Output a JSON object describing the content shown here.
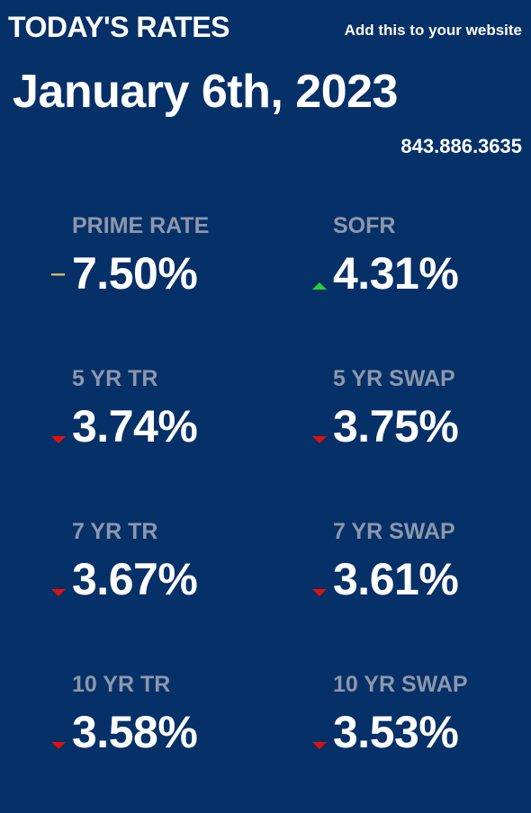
{
  "header": {
    "title": "TODAY'S RATES",
    "add_link": "Add this to your website"
  },
  "date": "January 6th, 2023",
  "phone": "843.886.3635",
  "colors": {
    "background": "#063068",
    "label": "#8d97ab",
    "value": "#ffffff",
    "up": "#2ecc2e",
    "down": "#e01010",
    "unchanged": "#c8b46a"
  },
  "rates": [
    {
      "label": "PRIME RATE",
      "value": "7.50%",
      "trend": "unchanged",
      "icon": "dash-icon"
    },
    {
      "label": "SOFR",
      "value": "4.31%",
      "trend": "up",
      "icon": "triangle-up-icon"
    },
    {
      "label": "5 YR TR",
      "value": "3.74%",
      "trend": "down",
      "icon": "triangle-down-icon"
    },
    {
      "label": "5 YR SWAP",
      "value": "3.75%",
      "trend": "down",
      "icon": "triangle-down-icon"
    },
    {
      "label": "7 YR TR",
      "value": "3.67%",
      "trend": "down",
      "icon": "triangle-down-icon"
    },
    {
      "label": "7 YR SWAP",
      "value": "3.61%",
      "trend": "down",
      "icon": "triangle-down-icon"
    },
    {
      "label": "10 YR TR",
      "value": "3.58%",
      "trend": "down",
      "icon": "triangle-down-icon"
    },
    {
      "label": "10 YR SWAP",
      "value": "3.53%",
      "trend": "down",
      "icon": "triangle-down-icon"
    }
  ]
}
